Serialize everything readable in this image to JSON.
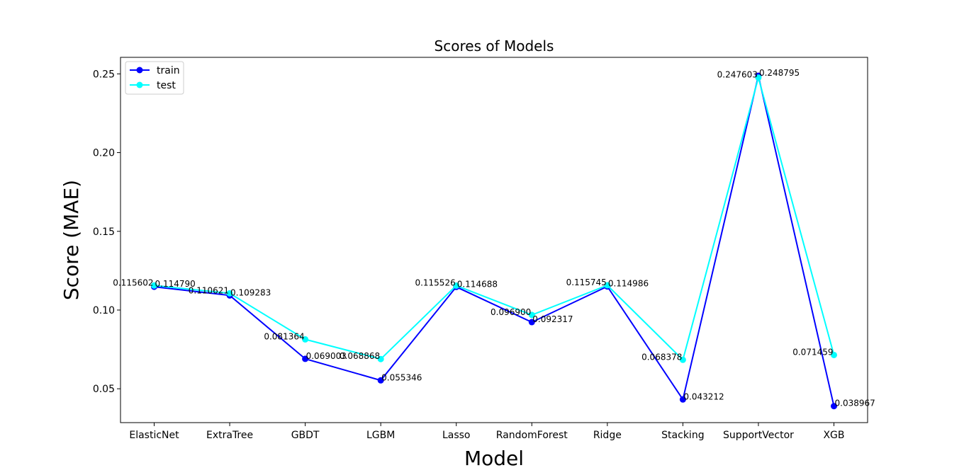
{
  "chart_data": {
    "type": "line",
    "title": "Scores of Models",
    "xlabel": "Model",
    "ylabel": "Score (MAE)",
    "categories": [
      "ElasticNet",
      "ExtraTree",
      "GBDT",
      "LGBM",
      "Lasso",
      "RandomForest",
      "Ridge",
      "Stacking",
      "SupportVector",
      "XGB"
    ],
    "ylim": [
      0.0285,
      0.2605
    ],
    "yticks": [
      0.05,
      0.1,
      0.15,
      0.2,
      0.25
    ],
    "ytick_labels": [
      "0.05",
      "0.10",
      "0.15",
      "0.20",
      "0.25"
    ],
    "grid": false,
    "legend_position": "top-left",
    "series": [
      {
        "name": "train",
        "color": "#0000ff",
        "values": [
          0.11479,
          0.109283,
          0.069003,
          0.055346,
          0.114688,
          0.092317,
          0.114986,
          0.043212,
          0.248795,
          0.038967
        ],
        "labels": [
          "0.114790",
          "0.109283",
          "0.069003",
          "0.055346",
          "0.114688",
          "0.092317",
          "0.114986",
          "0.043212",
          "0.248795",
          "0.038967"
        ]
      },
      {
        "name": "test",
        "color": "#00ffff",
        "values": [
          0.115602,
          0.110621,
          0.081364,
          0.068868,
          0.115526,
          0.0969,
          0.115745,
          0.068378,
          0.247603,
          0.071459
        ],
        "labels": [
          "0.115602",
          "0.110621",
          "0.081364",
          "0.068868",
          "0.115526",
          "0.096900",
          "0.115745",
          "0.068378",
          "0.247603",
          "0.071459"
        ]
      }
    ]
  }
}
